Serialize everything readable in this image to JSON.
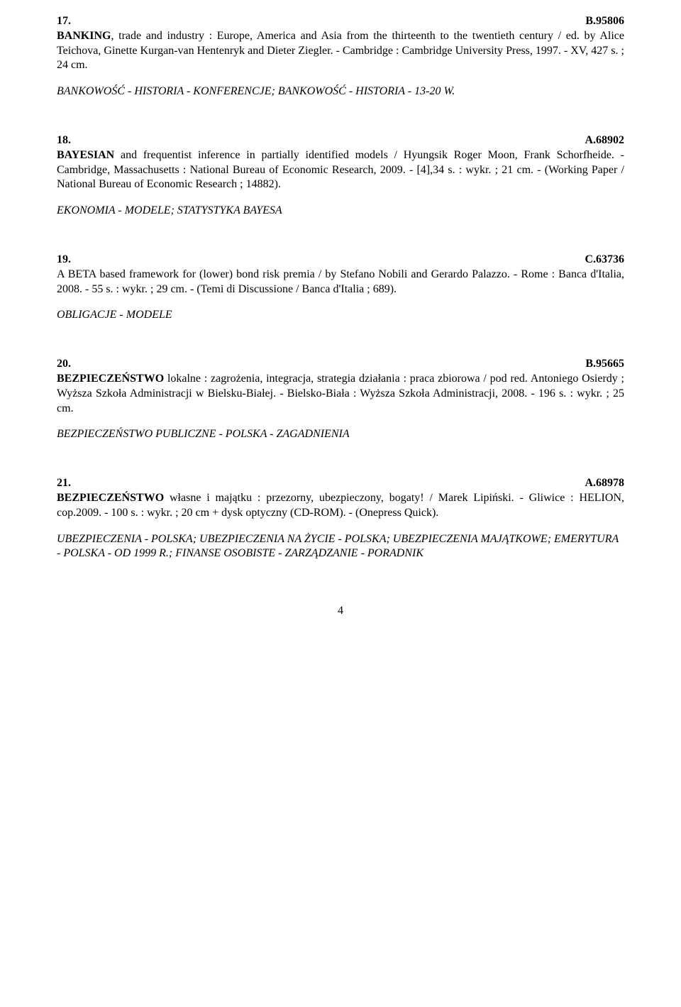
{
  "entries": [
    {
      "num": "17.",
      "code": "B.95806",
      "lead": "BANKING",
      "rest": ", trade and industry : Europe, America and Asia from the thirteenth to the twentieth century / ed. by Alice Teichova, Ginette Kurgan-van Hentenryk and Dieter Ziegler. - Cambridge : Cambridge University Press, 1997. - XV, 427 s. ; 24 cm.",
      "subjects": "BANKOWOŚĆ - HISTORIA - KONFERENCJE; BANKOWOŚĆ - HISTORIA - 13-20 W."
    },
    {
      "num": "18.",
      "code": "A.68902",
      "lead": "BAYESIAN",
      "rest": " and frequentist inference in partially identified models / Hyungsik Roger Moon, Frank Schorfheide. - Cambridge, Massachusetts : National Bureau of Economic Research, 2009. - [4],34 s. : wykr. ; 21 cm. - (Working Paper / National Bureau of Economic Research ; 14882).",
      "subjects": "EKONOMIA - MODELE; STATYSTYKA BAYESA"
    },
    {
      "num": "19.",
      "code": "C.63736",
      "lead": "",
      "rest": "A BETA based framework for (lower) bond risk premia / by Stefano Nobili and Gerardo Palazzo. - Rome : Banca d'Italia, 2008. - 55 s. : wykr. ; 29 cm. - (Temi di Discussione / Banca d'Italia ; 689).",
      "subjects": "OBLIGACJE - MODELE"
    },
    {
      "num": "20.",
      "code": "B.95665",
      "lead": "BEZPIECZEŃSTWO",
      "rest": " lokalne : zagrożenia, integracja, strategia działania : praca zbiorowa / pod red. Antoniego Osierdy ; Wyższa Szkoła Administracji w Bielsku-Białej. - Bielsko-Biała : Wyższa Szkoła Administracji, 2008. - 196 s. : wykr. ; 25 cm.",
      "subjects": "BEZPIECZEŃSTWO PUBLICZNE - POLSKA - ZAGADNIENIA"
    },
    {
      "num": "21.",
      "code": "A.68978",
      "lead": "BEZPIECZEŃSTWO",
      "rest": " własne i majątku : przezorny, ubezpieczony, bogaty! / Marek Lipiński. - Gliwice : HELION, cop.2009. - 100 s. : wykr. ; 20 cm + dysk optyczny (CD-ROM). - (Onepress Quick).",
      "subjects": "UBEZPIECZENIA - POLSKA; UBEZPIECZENIA NA ŻYCIE - POLSKA; UBEZPIECZENIA MAJĄTKOWE; EMERYTURA - POLSKA - OD 1999 R.; FINANSE OSOBISTE - ZARZĄDZANIE - PORADNIK"
    }
  ],
  "pageNumber": "4"
}
